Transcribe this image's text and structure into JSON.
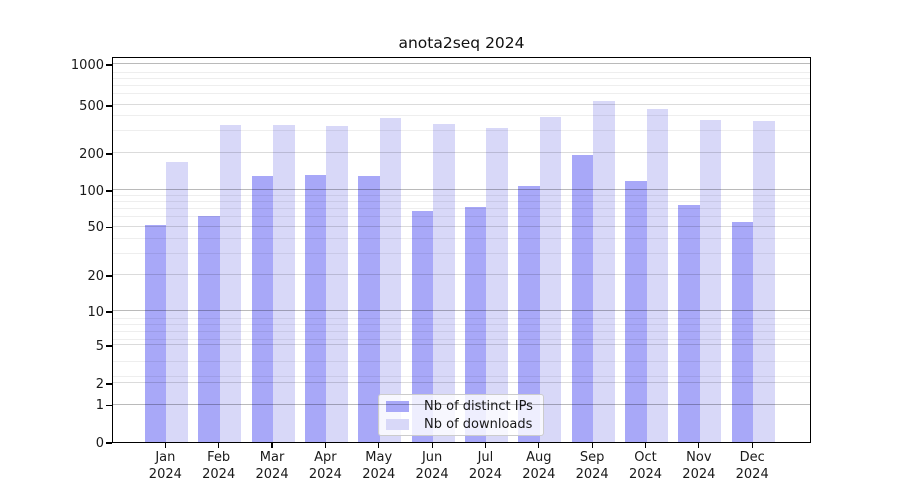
{
  "title": "anota2seq 2024",
  "legend": {
    "items": [
      {
        "label": "Nb of distinct IPs",
        "series": "distinct_ips",
        "color": "#a8a8f8"
      },
      {
        "label": "Nb of downloads",
        "series": "downloads",
        "color": "#d8d8f8"
      }
    ]
  },
  "colors": {
    "distinct_ips_bar": "#a8a8f8",
    "downloads_bar": "#d8d8f8",
    "axis_line": "#000000",
    "grid_strong": "#b9b9b9",
    "grid_major": "#d9d9d9",
    "grid_minor": "#efefef",
    "legend_border": "#cccccc"
  },
  "axis": {
    "ytick_labels": [
      "0",
      "1",
      "2",
      "5",
      "10",
      "20",
      "50",
      "100",
      "200",
      "500",
      "1000"
    ],
    "xtick_year_line": "2024"
  },
  "chart_data": {
    "type": "bar",
    "title": "anota2seq 2024",
    "categories": [
      "Jan 2024",
      "Feb 2024",
      "Mar 2024",
      "Apr 2024",
      "May 2024",
      "Jun 2024",
      "Jul 2024",
      "Aug 2024",
      "Sep 2024",
      "Oct 2024",
      "Nov 2024",
      "Dec 2024"
    ],
    "series": [
      {
        "name": "Nb of distinct IPs",
        "color": "#a8a8f8",
        "values": [
          52,
          61,
          129,
          132,
          129,
          68,
          73,
          107,
          193,
          119,
          75,
          55
        ]
      },
      {
        "name": "Nb of downloads",
        "color": "#d8d8f8",
        "values": [
          170,
          336,
          336,
          331,
          386,
          345,
          318,
          392,
          525,
          455,
          374,
          364
        ]
      }
    ],
    "xlabel": "",
    "ylabel": "",
    "yscale": "log (with 0 baseline segment)",
    "yticks": [
      0,
      1,
      2,
      5,
      10,
      20,
      50,
      100,
      200,
      500,
      1000
    ],
    "ylim": [
      0,
      1200
    ],
    "grid": "on (major + minor, drawn over bars)",
    "legend_position": "lower center inside axes"
  }
}
